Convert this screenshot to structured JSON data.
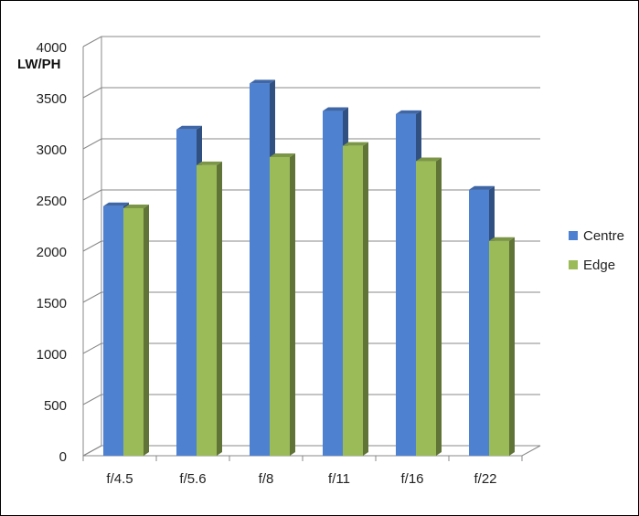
{
  "chart_data": {
    "type": "bar",
    "title": "",
    "xlabel": "",
    "ylabel": "LW/PH",
    "ylim": [
      0,
      4000
    ],
    "yticks": [
      "0",
      "500",
      "1000",
      "1500",
      "2000",
      "2500",
      "3000",
      "3500",
      "4000"
    ],
    "categories": [
      "f/4.5",
      "f/5.6",
      "f/8",
      "f/11",
      "f/16",
      "f/22"
    ],
    "series": [
      {
        "name": "Centre",
        "color": "#4F81D1",
        "values": [
          2440,
          3190,
          3640,
          3370,
          3340,
          2600
        ]
      },
      {
        "name": "Edge",
        "color": "#9BBB59",
        "values": [
          2420,
          2840,
          2920,
          3030,
          2880,
          2100
        ]
      }
    ],
    "grid": true,
    "legend_position": "right",
    "style": "3d"
  }
}
